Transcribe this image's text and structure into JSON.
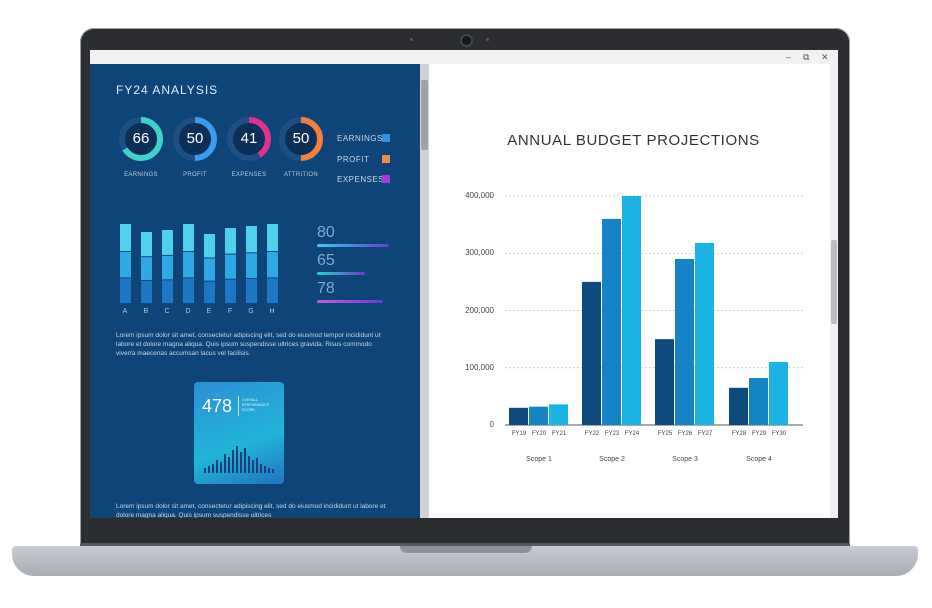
{
  "window": {
    "controls": [
      "–",
      "⧉",
      "✕"
    ]
  },
  "left_panel": {
    "title": "FY24 ANALYSIS",
    "rings": [
      {
        "value": "66",
        "label": "EARNINGS",
        "fraction": 0.66,
        "color": "#3fd3c9"
      },
      {
        "value": "50",
        "label": "PROFIT",
        "fraction": 0.5,
        "color": "#3a9bf0"
      },
      {
        "value": "41",
        "label": "EXPENSES",
        "fraction": 0.41,
        "color": "#e0328c"
      },
      {
        "value": "50",
        "label": "ATTRITION",
        "fraction": 0.5,
        "color": "#f0803c"
      }
    ],
    "legend": [
      {
        "label": "EARNINGS",
        "color": "#2f8fe0"
      },
      {
        "label": "PROFIT",
        "color": "#f08a4b"
      },
      {
        "label": "EXPENSES",
        "color": "#a33be0"
      }
    ],
    "bar_letters": [
      "A",
      "B",
      "C",
      "D",
      "E",
      "F",
      "G",
      "H"
    ],
    "stats": [
      {
        "value": "80",
        "color": "#3ecbe8"
      },
      {
        "value": "65",
        "color": "#2fd1c3"
      },
      {
        "value": "78",
        "color": "#c75ad8"
      }
    ],
    "lorem_1": "Lorem ipsum dolor sit amet, consectetur adipiscing elit, sed do eiusmod tempor incididunt ut labore et dolore magna aliqua. Quis ipsum suspendisse ultrices gravida. Risus commodo viverra maecenas accumsan lacus vel facilisis.",
    "card": {
      "value": "478",
      "subtitle": "OVERALL PERFORMANCE SCORE"
    },
    "lorem_2": "Lorem ipsum dolor sit amet, consectetur adipiscing elit, sed do eiusmod incididunt ut labore et dolore magna aliqua. Quis ipsum suspendisse ultrices"
  },
  "chart_data": {
    "type": "bar",
    "title": "ANNUAL BUDGET PROJECTIONS",
    "xlabel": "",
    "ylabel": "",
    "ylim": [
      0,
      400000
    ],
    "yticks": [
      "0",
      "100,000",
      "200,000",
      "300,000",
      "400,000"
    ],
    "grid": true,
    "groups": [
      {
        "name": "Scope 1",
        "bars": [
          {
            "label": "FY19",
            "value": 30000
          },
          {
            "label": "FY20",
            "value": 32000
          },
          {
            "label": "FY21",
            "value": 36000
          }
        ]
      },
      {
        "name": "Scope 2",
        "bars": [
          {
            "label": "FY22",
            "value": 250000
          },
          {
            "label": "FY23",
            "value": 360000
          },
          {
            "label": "FY24",
            "value": 400000
          }
        ]
      },
      {
        "name": "Scope 3",
        "bars": [
          {
            "label": "FY25",
            "value": 150000
          },
          {
            "label": "FY26",
            "value": 290000
          },
          {
            "label": "FY27",
            "value": 318000
          }
        ]
      },
      {
        "name": "Scope 4",
        "bars": [
          {
            "label": "FY28",
            "value": 65000
          },
          {
            "label": "FY29",
            "value": 82000
          },
          {
            "label": "FY30",
            "value": 110000
          }
        ]
      }
    ],
    "bar_colors": [
      "#0d4a7e",
      "#1584c6",
      "#1bb3e3"
    ]
  }
}
